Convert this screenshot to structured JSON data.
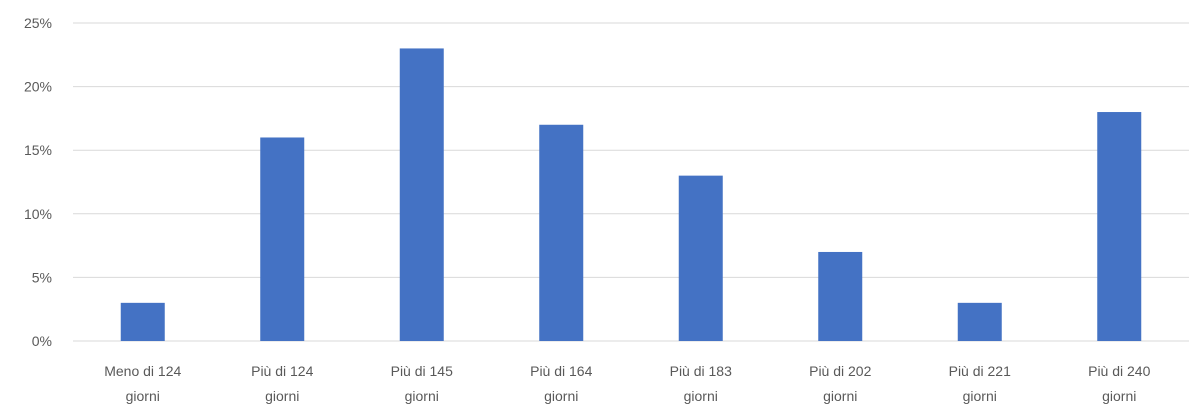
{
  "chart_data": {
    "type": "bar",
    "title": "",
    "xlabel": "",
    "ylabel": "",
    "categories": [
      [
        "Meno di 124",
        "giorni"
      ],
      [
        "Più di 124",
        "giorni"
      ],
      [
        "Più di 145",
        "giorni"
      ],
      [
        "Più di 164",
        "giorni"
      ],
      [
        "Più di 183",
        "giorni"
      ],
      [
        "Più di 202",
        "giorni"
      ],
      [
        "Più di 221",
        "giorni"
      ],
      [
        "Più di 240",
        "giorni"
      ]
    ],
    "values": [
      3,
      16,
      23,
      17,
      13,
      7,
      3,
      18
    ],
    "unit": "%",
    "ylim": [
      0,
      25
    ],
    "yticks": [
      "0%",
      "5%",
      "10%",
      "15%",
      "20%",
      "25%"
    ],
    "ytick_values": [
      0,
      5,
      10,
      15,
      20,
      25
    ],
    "grid": true,
    "legend": "none",
    "colors": {
      "bar": "#4472C4",
      "grid": "#D9D9D9",
      "text": "#595959"
    }
  }
}
